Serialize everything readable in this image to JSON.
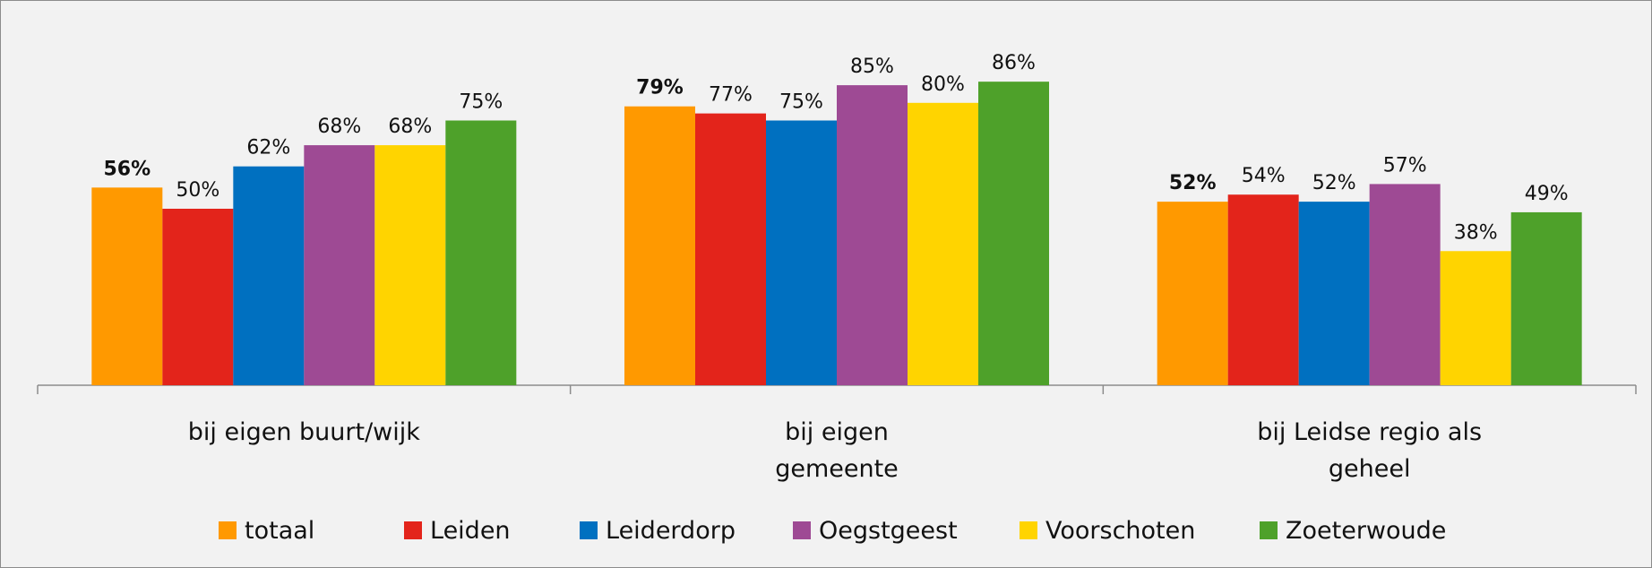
{
  "chart_data": {
    "type": "bar",
    "categories": [
      "bij eigen buurt/wijk",
      "bij eigen gemeente",
      "bij Leidse regio als geheel"
    ],
    "series": [
      {
        "name": "totaal",
        "color": "#ff9900",
        "values": [
          56,
          79,
          52
        ],
        "value_labels": [
          "56%",
          "79%",
          "52%"
        ]
      },
      {
        "name": "Leiden",
        "color": "#e3241b",
        "values": [
          50,
          77,
          54
        ],
        "value_labels": [
          "50%",
          "77%",
          "54%"
        ]
      },
      {
        "name": "Leiderdorp",
        "color": "#0070c0",
        "values": [
          62,
          75,
          52
        ],
        "value_labels": [
          "62%",
          "75%",
          "52%"
        ]
      },
      {
        "name": "Oegstgeest",
        "color": "#9e4a94",
        "values": [
          68,
          85,
          57
        ],
        "value_labels": [
          "68%",
          "85%",
          "57%"
        ]
      },
      {
        "name": "Voorschoten",
        "color": "#ffd400",
        "values": [
          68,
          80,
          38
        ],
        "value_labels": [
          "68%",
          "80%",
          "38%"
        ]
      },
      {
        "name": "Zoeterwoude",
        "color": "#4ea12a",
        "values": [
          75,
          86,
          49
        ],
        "value_labels": [
          "75%",
          "86%",
          "49%"
        ]
      }
    ],
    "legend": "bottom"
  }
}
